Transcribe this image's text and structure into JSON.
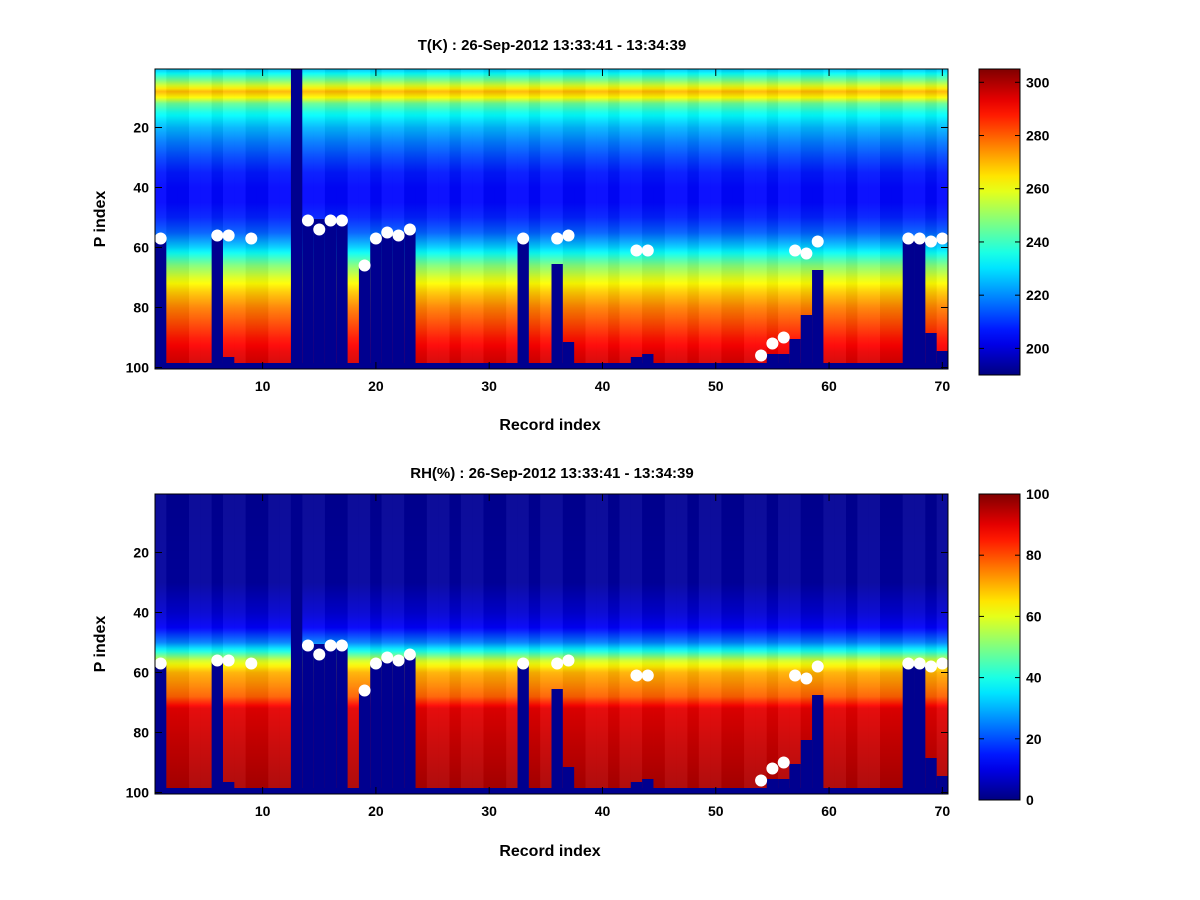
{
  "colors": {
    "low": "#00008f",
    "marker": "#ffffff",
    "axis": "#000000",
    "background": "#ffffff"
  },
  "colormap": "jet",
  "chart_data": [
    {
      "type": "heatmap",
      "title": "T(K) : 26-Sep-2012 13:33:41 - 13:34:39",
      "xlabel": "Record index",
      "ylabel": "P index",
      "xlim": [
        0.5,
        70.5
      ],
      "ylim": [
        0.5,
        100.5
      ],
      "x_ticks": [
        "10",
        "20",
        "30",
        "40",
        "50",
        "60",
        "70"
      ],
      "y_ticks": [
        "20",
        "40",
        "60",
        "80",
        "100"
      ],
      "y_reversed": true,
      "colorbar": {
        "range": [
          190,
          305
        ],
        "ticks": [
          "200",
          "220",
          "240",
          "260",
          "280",
          "300"
        ]
      },
      "value_by_p_index": [
        {
          "p": 1,
          "value": 228
        },
        {
          "p": 4,
          "value": 245
        },
        {
          "p": 8,
          "value": 270
        },
        {
          "p": 10,
          "value": 262
        },
        {
          "p": 12,
          "value": 245
        },
        {
          "p": 15,
          "value": 235
        },
        {
          "p": 20,
          "value": 225
        },
        {
          "p": 25,
          "value": 218
        },
        {
          "p": 30,
          "value": 212
        },
        {
          "p": 35,
          "value": 207
        },
        {
          "p": 40,
          "value": 205
        },
        {
          "p": 45,
          "value": 205
        },
        {
          "p": 50,
          "value": 208
        },
        {
          "p": 55,
          "value": 215
        },
        {
          "p": 60,
          "value": 228
        },
        {
          "p": 63,
          "value": 238
        },
        {
          "p": 66,
          "value": 248
        },
        {
          "p": 70,
          "value": 258
        },
        {
          "p": 75,
          "value": 268
        },
        {
          "p": 80,
          "value": 276
        },
        {
          "p": 85,
          "value": 282
        },
        {
          "p": 90,
          "value": 288
        },
        {
          "p": 95,
          "value": 293
        },
        {
          "p": 100,
          "value": 296
        }
      ]
    },
    {
      "type": "heatmap",
      "title": "RH(%) : 26-Sep-2012 13:33:41 - 13:34:39",
      "xlabel": "Record index",
      "ylabel": "P index",
      "xlim": [
        0.5,
        70.5
      ],
      "ylim": [
        0.5,
        100.5
      ],
      "x_ticks": [
        "10",
        "20",
        "30",
        "40",
        "50",
        "60",
        "70"
      ],
      "y_ticks": [
        "20",
        "40",
        "60",
        "80",
        "100"
      ],
      "y_reversed": true,
      "colorbar": {
        "range": [
          0,
          100
        ],
        "ticks": [
          "0",
          "20",
          "40",
          "60",
          "80",
          "100"
        ]
      },
      "value_by_p_index": [
        {
          "p": 1,
          "value": 2
        },
        {
          "p": 30,
          "value": 3
        },
        {
          "p": 40,
          "value": 8
        },
        {
          "p": 45,
          "value": 12
        },
        {
          "p": 50,
          "value": 25
        },
        {
          "p": 53,
          "value": 40
        },
        {
          "p": 56,
          "value": 58
        },
        {
          "p": 60,
          "value": 70
        },
        {
          "p": 64,
          "value": 74
        },
        {
          "p": 68,
          "value": 78
        },
        {
          "p": 72,
          "value": 90
        },
        {
          "p": 80,
          "value": 92
        },
        {
          "p": 90,
          "value": 94
        },
        {
          "p": 100,
          "value": 96
        }
      ]
    }
  ],
  "masked_columns": [
    {
      "record": 1,
      "from_p": 57
    },
    {
      "record": 6,
      "from_p": 56
    },
    {
      "record": 7,
      "from_p": 97
    },
    {
      "record": 13,
      "from_p": 1
    },
    {
      "record": 14,
      "from_p": 51
    },
    {
      "record": 15,
      "from_p": 51
    },
    {
      "record": 16,
      "from_p": 51
    },
    {
      "record": 17,
      "from_p": 51
    },
    {
      "record": 19,
      "from_p": 66
    },
    {
      "record": 20,
      "from_p": 57
    },
    {
      "record": 21,
      "from_p": 55
    },
    {
      "record": 22,
      "from_p": 56
    },
    {
      "record": 23,
      "from_p": 54
    },
    {
      "record": 33,
      "from_p": 57
    },
    {
      "record": 36,
      "from_p": 66
    },
    {
      "record": 37,
      "from_p": 92
    },
    {
      "record": 43,
      "from_p": 97
    },
    {
      "record": 44,
      "from_p": 96
    },
    {
      "record": 55,
      "from_p": 96
    },
    {
      "record": 56,
      "from_p": 96
    },
    {
      "record": 57,
      "from_p": 91
    },
    {
      "record": 58,
      "from_p": 83
    },
    {
      "record": 59,
      "from_p": 68
    },
    {
      "record": 67,
      "from_p": 58
    },
    {
      "record": 68,
      "from_p": 58
    },
    {
      "record": 69,
      "from_p": 89
    },
    {
      "record": 70,
      "from_p": 95
    }
  ],
  "markers": [
    {
      "record": 1,
      "p": 57
    },
    {
      "record": 6,
      "p": 56
    },
    {
      "record": 7,
      "p": 56
    },
    {
      "record": 9,
      "p": 57
    },
    {
      "record": 14,
      "p": 51
    },
    {
      "record": 15,
      "p": 54
    },
    {
      "record": 16,
      "p": 51
    },
    {
      "record": 17,
      "p": 51
    },
    {
      "record": 19,
      "p": 66
    },
    {
      "record": 20,
      "p": 57
    },
    {
      "record": 21,
      "p": 55
    },
    {
      "record": 22,
      "p": 56
    },
    {
      "record": 23,
      "p": 54
    },
    {
      "record": 33,
      "p": 57
    },
    {
      "record": 36,
      "p": 57
    },
    {
      "record": 37,
      "p": 56
    },
    {
      "record": 43,
      "p": 61
    },
    {
      "record": 44,
      "p": 61
    },
    {
      "record": 54,
      "p": 96
    },
    {
      "record": 55,
      "p": 92
    },
    {
      "record": 56,
      "p": 90
    },
    {
      "record": 57,
      "p": 61
    },
    {
      "record": 58,
      "p": 62
    },
    {
      "record": 59,
      "p": 58
    },
    {
      "record": 67,
      "p": 57
    },
    {
      "record": 68,
      "p": 57
    },
    {
      "record": 69,
      "p": 58
    },
    {
      "record": 70,
      "p": 57
    }
  ]
}
